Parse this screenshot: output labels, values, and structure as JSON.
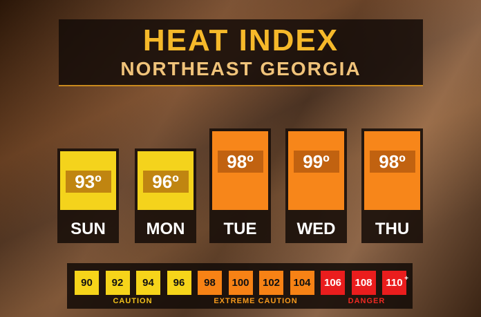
{
  "header": {
    "title": "HEAT INDEX",
    "subtitle": "NORTHEAST GEORGIA"
  },
  "days": [
    {
      "day": "SUN",
      "value": "93º",
      "color": "#f4d31c"
    },
    {
      "day": "MON",
      "value": "96º",
      "color": "#f4d31c"
    },
    {
      "day": "TUE",
      "value": "98º",
      "color": "#f7861a"
    },
    {
      "day": "WED",
      "value": "99º",
      "color": "#f7861a"
    },
    {
      "day": "THU",
      "value": "98º",
      "color": "#f7861a"
    }
  ],
  "scale": {
    "steps": [
      {
        "label": "90",
        "color": "#f6d41a"
      },
      {
        "label": "92",
        "color": "#f6d41a"
      },
      {
        "label": "94",
        "color": "#f6d41a"
      },
      {
        "label": "96",
        "color": "#f6d41a"
      },
      {
        "label": "98",
        "color": "#f78215"
      },
      {
        "label": "100",
        "color": "#f78215"
      },
      {
        "label": "102",
        "color": "#f78215"
      },
      {
        "label": "104",
        "color": "#f78215"
      },
      {
        "label": "106",
        "color": "#ea1d1d"
      },
      {
        "label": "108",
        "color": "#ea1d1d"
      },
      {
        "label": "110",
        "sup": "+",
        "color": "#ea1d1d"
      }
    ],
    "groups": [
      {
        "label": "CAUTION",
        "color": "#f3c21b"
      },
      {
        "label": "EXTREME CAUTION",
        "color": "#f79a1c"
      },
      {
        "label": "DANGER",
        "color": "#ef2a22"
      }
    ]
  }
}
